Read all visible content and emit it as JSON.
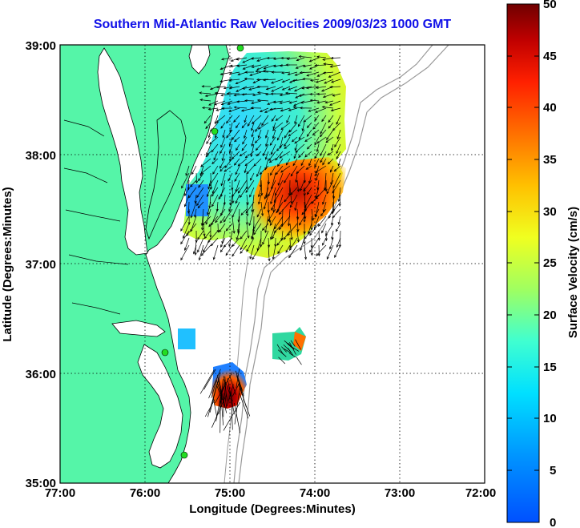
{
  "title": "Southern Mid-Atlantic Raw Velocities 2009/03/23 1000 GMT",
  "x_axis": {
    "label": "Longitude (Degrees:Minutes)",
    "ticks": [
      "77:00",
      "76:00",
      "75:00",
      "74:00",
      "73:00",
      "72:00"
    ]
  },
  "y_axis": {
    "label": "Latitude (Degrees:Minutes)",
    "ticks": [
      "39:00",
      "38:00",
      "37:00",
      "36:00",
      "35:00"
    ]
  },
  "colorbar": {
    "label": "Surface Velocity (cm/s)",
    "min": 0,
    "max": 50,
    "ticks": [
      "50",
      "45",
      "40",
      "35",
      "30",
      "25",
      "20",
      "15",
      "10",
      "5",
      "0"
    ],
    "colors": [
      "#0050ff",
      "#00c8ff",
      "#40ffd0",
      "#c8ff40",
      "#ffe000",
      "#ff8000",
      "#ff2000",
      "#b00000",
      "#7a0000"
    ]
  },
  "colors": {
    "land": "#55f5a8",
    "coast_line": "#000000",
    "bathymetry": "#9a9a9a",
    "title": "#1010e8",
    "station": "#22dd22"
  },
  "map_extent": {
    "lon_range": [
      -77,
      -72
    ],
    "lat_range": [
      35,
      39
    ]
  }
}
